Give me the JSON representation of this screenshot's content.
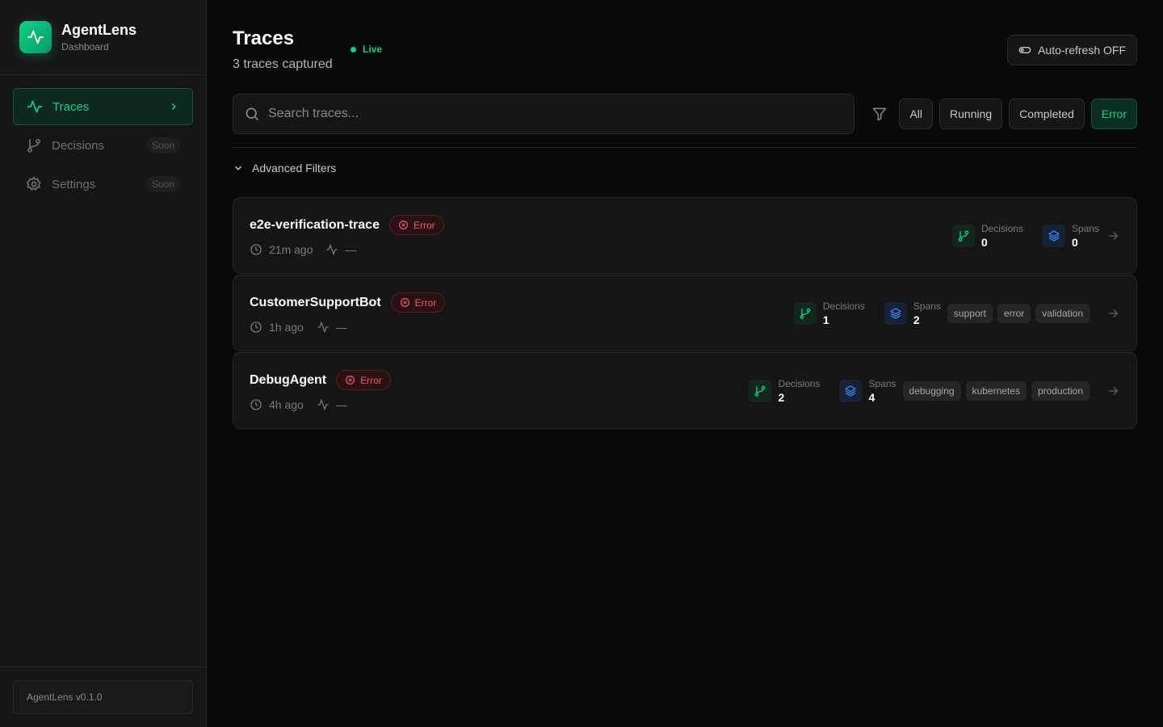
{
  "app": {
    "name": "AgentLens",
    "subtitle": "Dashboard",
    "version": "AgentLens v0.1.0"
  },
  "sidebar": {
    "items": [
      {
        "label": "Traces",
        "icon": "activity-icon",
        "active": true
      },
      {
        "label": "Decisions",
        "icon": "git-branch-icon",
        "badge": "Soon"
      },
      {
        "label": "Settings",
        "icon": "gear-icon",
        "badge": "Soon"
      }
    ]
  },
  "header": {
    "title": "Traces",
    "live": "Live",
    "subtitle": "3 traces captured",
    "auto_refresh": "Auto-refresh OFF"
  },
  "search": {
    "placeholder": "Search traces..."
  },
  "filters": {
    "options": [
      "All",
      "Running",
      "Completed",
      "Error"
    ],
    "selected": "Error"
  },
  "advanced_filters": "Advanced Filters",
  "colors": {
    "accent": "#10d18a",
    "error": "#f05a64",
    "spans": "#3b82f6"
  },
  "traces": [
    {
      "name": "e2e-verification-trace",
      "status": "Error",
      "time": "21m ago",
      "duration": "—",
      "decisions_label": "Decisions",
      "decisions": "0",
      "spans_label": "Spans",
      "spans": "0",
      "tags": []
    },
    {
      "name": "CustomerSupportBot",
      "status": "Error",
      "time": "1h ago",
      "duration": "—",
      "decisions_label": "Decisions",
      "decisions": "1",
      "spans_label": "Spans",
      "spans": "2",
      "tags": [
        "support",
        "error",
        "validation"
      ]
    },
    {
      "name": "DebugAgent",
      "status": "Error",
      "time": "4h ago",
      "duration": "—",
      "decisions_label": "Decisions",
      "decisions": "2",
      "spans_label": "Spans",
      "spans": "4",
      "tags": [
        "debugging",
        "kubernetes",
        "production"
      ]
    }
  ]
}
